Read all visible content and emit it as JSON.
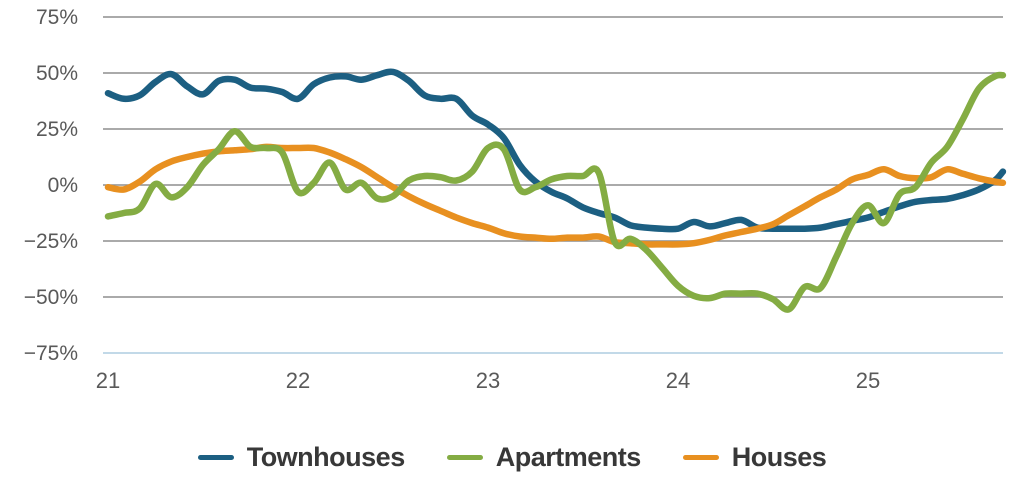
{
  "chart_data": {
    "type": "line",
    "title": "",
    "xlabel": "",
    "ylabel": "",
    "grid": "horizontal",
    "legend_position": "bottom",
    "ylim": [
      -75,
      75
    ],
    "xlim": [
      21,
      25.72
    ],
    "y_ticks": [
      {
        "label": "75%",
        "value": 75
      },
      {
        "label": "50%",
        "value": 50
      },
      {
        "label": "25%",
        "value": 25
      },
      {
        "label": "0%",
        "value": 0
      },
      {
        "label": "−25%",
        "value": -25
      },
      {
        "label": "−50%",
        "value": -50
      },
      {
        "label": "−75%",
        "value": -75
      }
    ],
    "x_ticks": [
      {
        "label": "21",
        "value": 21
      },
      {
        "label": "22",
        "value": 22
      },
      {
        "label": "23",
        "value": 23
      },
      {
        "label": "24",
        "value": 24
      },
      {
        "label": "25",
        "value": 25
      }
    ],
    "x": [
      21,
      21.083,
      21.167,
      21.25,
      21.333,
      21.417,
      21.5,
      21.583,
      21.667,
      21.75,
      21.833,
      21.917,
      22,
      22.083,
      22.167,
      22.25,
      22.333,
      22.417,
      22.5,
      22.583,
      22.667,
      22.75,
      22.833,
      22.917,
      23,
      23.083,
      23.167,
      23.25,
      23.333,
      23.417,
      23.5,
      23.583,
      23.667,
      23.75,
      23.833,
      23.917,
      24,
      24.083,
      24.167,
      24.25,
      24.333,
      24.417,
      24.5,
      24.583,
      24.667,
      24.75,
      24.833,
      24.917,
      25,
      25.083,
      25.167,
      25.25,
      25.333,
      25.417,
      25.5,
      25.583,
      25.667,
      25.71
    ],
    "series": [
      {
        "name": "Townhouses",
        "color": "#1c5f82",
        "values": [
          41,
          38.5,
          40,
          46,
          49.5,
          44,
          40.5,
          46.5,
          47,
          43.5,
          43,
          41.5,
          38.5,
          45,
          48,
          48.5,
          47,
          49,
          50.5,
          46.5,
          40,
          38.5,
          38.5,
          31,
          27,
          21,
          9,
          1.5,
          -3,
          -6,
          -10,
          -12.5,
          -14.5,
          -18,
          -19,
          -19.5,
          -19.5,
          -16.5,
          -18.5,
          -17,
          -15.6,
          -19,
          -19.5,
          -19.5,
          -19.5,
          -19,
          -17.5,
          -16,
          -14.5,
          -12,
          -9.5,
          -7.5,
          -6.7,
          -6.2,
          -4.5,
          -2,
          2,
          6
        ]
      },
      {
        "name": "Apartments",
        "color": "#84ac43",
        "values": [
          -14,
          -12.5,
          -10.5,
          0.5,
          -5.5,
          -1,
          9,
          16,
          24,
          17,
          16.5,
          14.5,
          -3,
          1,
          10,
          -2,
          1,
          -6,
          -5,
          2,
          4,
          3.5,
          2,
          6,
          16.5,
          16,
          -2,
          -1,
          2.5,
          4,
          4,
          5.5,
          -25.5,
          -24,
          -29,
          -37,
          -45,
          -49.5,
          -50.5,
          -48.5,
          -48.5,
          -48.5,
          -51,
          -55.5,
          -45.5,
          -46,
          -32,
          -17,
          -9,
          -17,
          -4,
          -1,
          10,
          17,
          29.5,
          43,
          48.5,
          49
        ]
      },
      {
        "name": "Houses",
        "color": "#e89020",
        "values": [
          -1,
          -2,
          1.5,
          7,
          10.5,
          12.5,
          14,
          15,
          15.5,
          16,
          17,
          16.5,
          16.5,
          16.5,
          14.5,
          11.5,
          8,
          3.5,
          -1,
          -5,
          -8.5,
          -11.5,
          -14.5,
          -17,
          -19,
          -21.5,
          -23,
          -23.5,
          -24,
          -23.5,
          -23.5,
          -23,
          -25.5,
          -26,
          -26.5,
          -26.5,
          -26.5,
          -26,
          -24.5,
          -22.5,
          -21,
          -19.5,
          -17.5,
          -13.5,
          -9.5,
          -5.5,
          -2,
          2.5,
          4.5,
          7,
          4,
          3,
          3.5,
          7,
          5,
          3,
          1.5,
          1
        ]
      }
    ],
    "colors": {
      "gridline": "#8e8e8e",
      "baseline_bottom": "#c2d9e8",
      "tick_text": "#595959"
    }
  }
}
